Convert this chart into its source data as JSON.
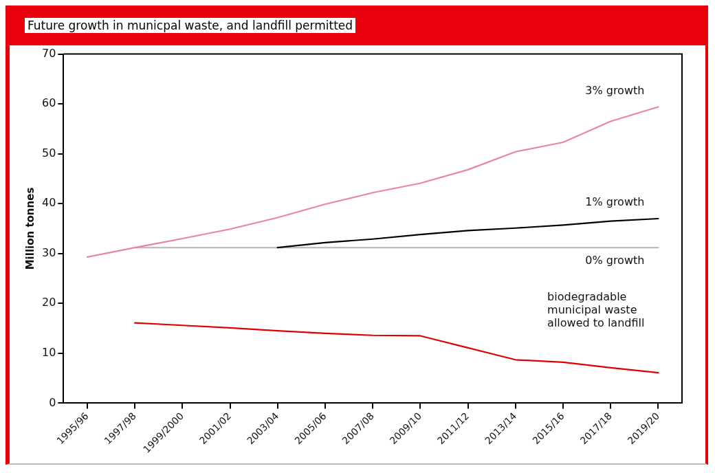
{
  "chart_data": {
    "type": "line",
    "title": "Future growth in municpal waste, and landfill permitted",
    "ylabel": "Million tonnes",
    "categories": [
      "1995/96",
      "1997/98",
      "1999/2000",
      "2001/02",
      "2003/04",
      "2005/06",
      "2007/08",
      "2009/10",
      "2011/12",
      "2013/14",
      "2015/16",
      "2017/18",
      "2019/20"
    ],
    "series": [
      {
        "name": "3% growth",
        "color": "#e8869b",
        "values": [
          29.3,
          31.2,
          33.0,
          34.9,
          37.2,
          39.9,
          42.2,
          44.1,
          46.8,
          50.4,
          52.3,
          56.5,
          59.4
        ]
      },
      {
        "name": "1% growth",
        "color": "#000000",
        "values": [
          null,
          null,
          null,
          null,
          31.2,
          32.2,
          32.9,
          33.8,
          34.6,
          35.1,
          35.7,
          36.5,
          37.0
        ]
      },
      {
        "name": "0% growth",
        "color": "#bdbdbd",
        "values": [
          null,
          31.2,
          31.2,
          31.2,
          31.2,
          31.2,
          31.2,
          31.2,
          31.2,
          31.2,
          31.2,
          31.2,
          31.2
        ]
      },
      {
        "name": "biodegradable municipal waste allowed to landfill",
        "color": "#e00000",
        "values": [
          null,
          16.1,
          15.6,
          15.1,
          14.5,
          14.0,
          13.6,
          13.5,
          11.1,
          8.7,
          8.2,
          7.1,
          6.1
        ]
      }
    ],
    "ylim": [
      0,
      70
    ],
    "yticks": [
      0,
      10,
      20,
      30,
      40,
      50,
      60,
      70
    ],
    "grid": false,
    "legend": false,
    "marker": "none",
    "line_style": "solid"
  }
}
